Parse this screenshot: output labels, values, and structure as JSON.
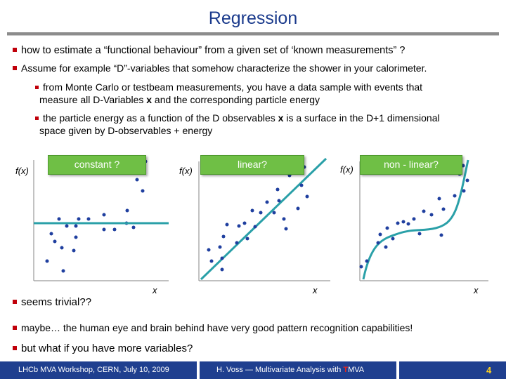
{
  "slide": {
    "title": "Regression",
    "bullets": [
      "how to estimate a “functional behaviour” from a given set of ‘known measurements” ?",
      "Assume for example “D”-variables that somehow characterize the shower in your calorimeter."
    ],
    "sub1_line1": "from Monte Carlo or testbeam measurements, you have a data sample with events that",
    "sub1_line2_a": "measure all D-Variables ",
    "sub1_line2_b": "x",
    "sub1_line2_c": " and the corresponding particle energy",
    "sub2_line1_a": "the particle energy as a function of the D observables ",
    "sub2_line1_b": "x",
    "sub2_line1_c": " is a surface in the D+1 dimensional",
    "sub2_line2": "space given by D-observables + energy",
    "plots": [
      {
        "label": "constant ?",
        "ylabel": "f(x)",
        "xlabel": "x"
      },
      {
        "label": "linear?",
        "ylabel": "f(x)",
        "xlabel": "x"
      },
      {
        "label": "non - linear?",
        "ylabel": "f(x)",
        "xlabel": "x"
      }
    ],
    "bottom_bullets": [
      "seems trivial??",
      "maybe… the human eye and brain behind have very good pattern recognition capabilities!",
      "but what if you have more variables?"
    ]
  },
  "footer": {
    "left": "LHCb MVA Workshop, CERN, July 10, 2009",
    "center_prefix": "H. Voss ― Multivariate Analysis with ",
    "center_t": "T",
    "center_suffix": "MVA",
    "page": "4"
  },
  "colors": {
    "title": "#1a3a8c",
    "bullet_square": "#c0000a",
    "label_box": "#6fbf45",
    "fit_line": "#2aa0a8",
    "points": "#1f3f9f",
    "footer_bg": "#1f3f8f",
    "page_number": "#ffd21f"
  }
}
